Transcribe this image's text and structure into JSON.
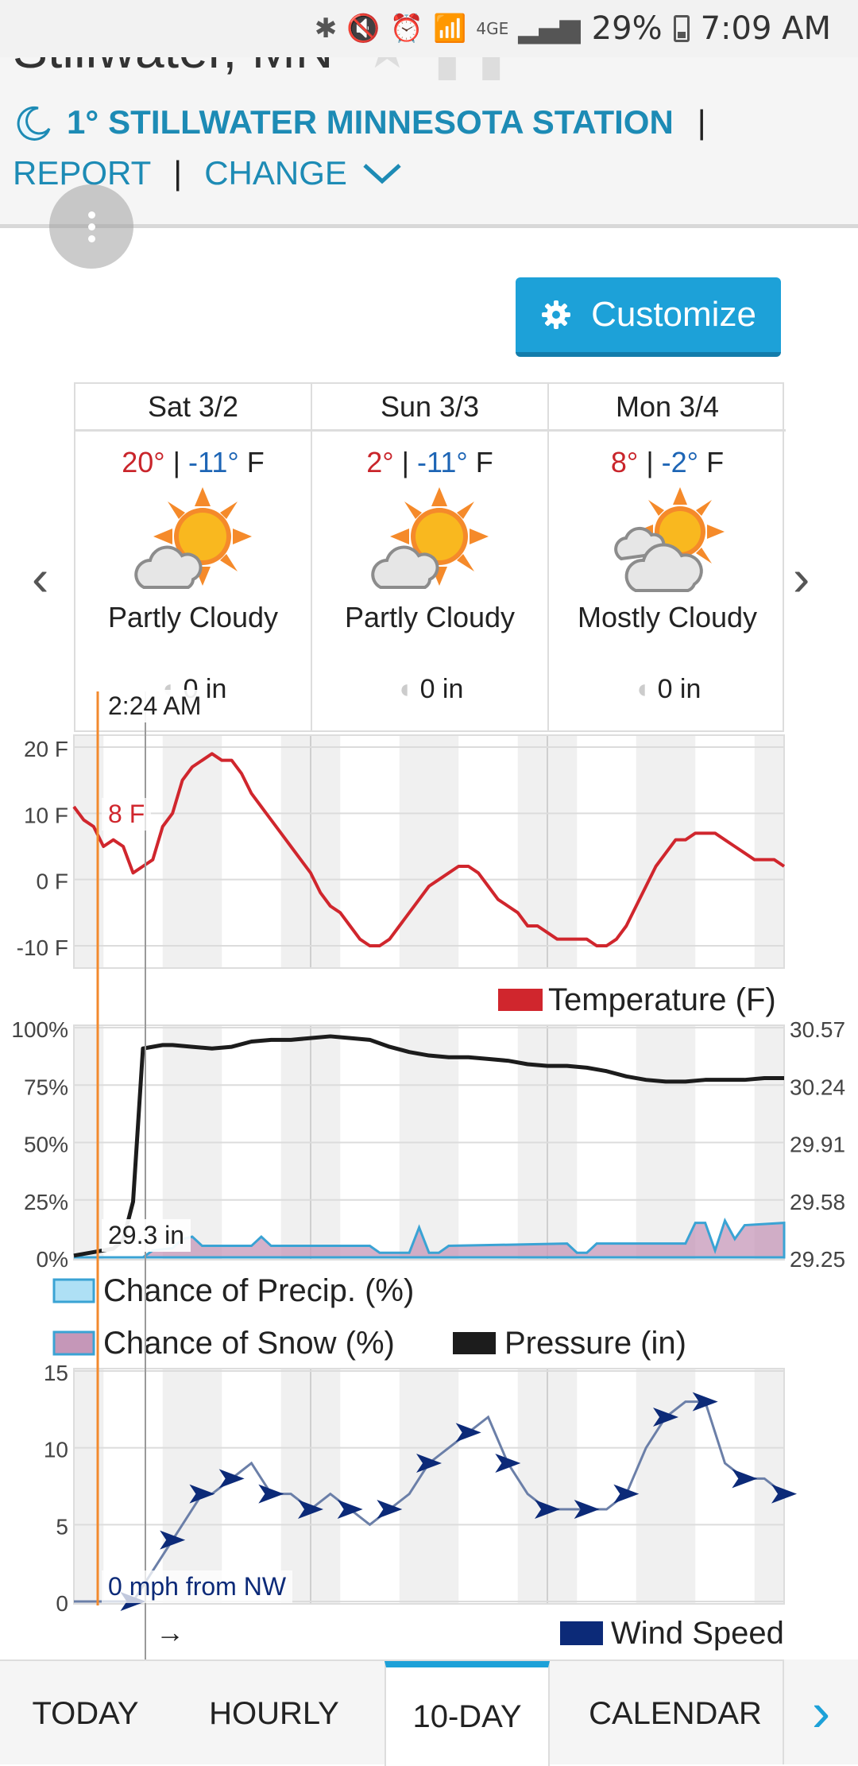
{
  "status_bar": {
    "battery": "29%",
    "time": "7:09 AM",
    "network": "4GE"
  },
  "header": {
    "city": "Stillwater, MN",
    "station_temp": "1°",
    "station_name": "STILLWATER MINNESOTA STATION",
    "separator": "|",
    "report_label": "REPORT",
    "change_label": "CHANGE"
  },
  "customize_label": "Customize",
  "forecast": [
    {
      "day": "Sat 3/2",
      "high": "20°",
      "low": "-11°",
      "unit": "F",
      "condition": "Partly Cloudy",
      "precip": "0 in",
      "icon": "partly-cloudy-icon"
    },
    {
      "day": "Sun 3/3",
      "high": "2°",
      "low": "-11°",
      "unit": "F",
      "condition": "Partly Cloudy",
      "precip": "0 in",
      "icon": "partly-cloudy-icon"
    },
    {
      "day": "Mon 3/4",
      "high": "8°",
      "low": "-2°",
      "unit": "F",
      "condition": "Mostly Cloudy",
      "precip": "0 in",
      "icon": "mostly-cloudy-icon"
    }
  ],
  "cursor": {
    "time": "2:24 AM",
    "temp": "8 F",
    "pressure": "29.3 in",
    "wind": "0 mph from NW",
    "wind_arrow": "→"
  },
  "chart_data": [
    {
      "type": "line",
      "title": "",
      "ylabel": "",
      "yticks": [
        "20 F",
        "10 F",
        "0 F",
        "-10 F"
      ],
      "ylim": [
        -10,
        20
      ],
      "xlim": [
        0,
        72
      ],
      "series": [
        {
          "name": "Temperature (F)",
          "color": "#d0262d",
          "x": [
            0,
            1,
            2,
            3,
            4,
            5,
            6,
            7,
            8,
            9,
            10,
            11,
            12,
            13,
            14,
            15,
            16,
            17,
            18,
            19,
            20,
            21,
            22,
            23,
            24,
            25,
            26,
            27,
            28,
            29,
            30,
            31,
            32,
            33,
            34,
            35,
            36,
            37,
            38,
            39,
            40,
            41,
            42,
            43,
            44,
            45,
            46,
            47,
            48,
            49,
            50,
            51,
            52,
            53,
            54,
            55,
            56,
            57,
            58,
            59,
            60,
            61,
            62,
            63,
            64,
            65,
            66,
            67,
            68,
            69,
            70,
            71,
            72
          ],
          "values": [
            11,
            9,
            8,
            5,
            6,
            5,
            1,
            2,
            3,
            8,
            10,
            15,
            17,
            18,
            19,
            18,
            18,
            16,
            13,
            11,
            9,
            7,
            5,
            3,
            1,
            -2,
            -4,
            -5,
            -7,
            -9,
            -10,
            -10,
            -9,
            -7,
            -5,
            -3,
            -1,
            0,
            1,
            2,
            2,
            1,
            -1,
            -3,
            -4,
            -5,
            -7,
            -7,
            -8,
            -9,
            -9,
            -9,
            -9,
            -10,
            -10,
            -9,
            -7,
            -4,
            -1,
            2,
            4,
            6,
            6,
            7,
            7,
            7,
            6,
            5,
            4,
            3,
            3,
            3,
            2
          ]
        }
      ],
      "legend": "bottom-right",
      "grid": true
    },
    {
      "type": "line",
      "yticks_left": [
        "100%",
        "75%",
        "50%",
        "25%",
        "0%"
      ],
      "yticks_right": [
        "30.57",
        "30.24",
        "29.91",
        "29.58",
        "29.25"
      ],
      "ylim_left": [
        0,
        100
      ],
      "ylim_right": [
        29.25,
        30.57
      ],
      "xlim": [
        0,
        72
      ],
      "series": [
        {
          "name": "Pressure (in)",
          "color": "#1c1c1c",
          "x": [
            0,
            2,
            4,
            5,
            6,
            7,
            9,
            10,
            12,
            14,
            16,
            18,
            20,
            22,
            24,
            26,
            28,
            30,
            32,
            34,
            36,
            38,
            40,
            42,
            44,
            46,
            48,
            50,
            52,
            54,
            56,
            58,
            60,
            62,
            64,
            66,
            68,
            70,
            72
          ],
          "values": [
            29.26,
            29.28,
            29.3,
            29.35,
            29.57,
            30.45,
            30.47,
            30.47,
            30.46,
            30.45,
            30.46,
            30.49,
            30.5,
            30.5,
            30.51,
            30.52,
            30.51,
            30.5,
            30.46,
            30.43,
            30.41,
            30.4,
            30.4,
            30.39,
            30.38,
            30.36,
            30.35,
            30.35,
            30.34,
            30.32,
            30.29,
            30.27,
            30.26,
            30.26,
            30.27,
            30.27,
            30.27,
            30.28,
            30.28
          ]
        },
        {
          "name": "Chance of Precip. (%)",
          "color": "#7ec8e8",
          "values": []
        },
        {
          "name": "Chance of Snow (%)",
          "color": "#c597b8",
          "x": [
            0,
            6,
            7,
            8,
            10,
            11,
            12,
            13,
            14,
            17,
            18,
            19,
            20,
            30,
            31,
            32,
            33,
            34,
            35,
            36,
            37,
            38,
            50,
            51,
            52,
            53,
            55,
            56,
            60,
            62,
            63,
            64,
            65,
            66,
            67,
            68,
            72
          ],
          "values": [
            0,
            0,
            0,
            3,
            4,
            8,
            9,
            5,
            5,
            5,
            5,
            9,
            5,
            5,
            2,
            2,
            2,
            2,
            13,
            2,
            2,
            5,
            6,
            2,
            2,
            6,
            6,
            6,
            6,
            6,
            15,
            15,
            3,
            16,
            8,
            14,
            15
          ]
        }
      ],
      "legend": "bottom-left",
      "grid": true
    },
    {
      "type": "line",
      "yticks": [
        "15",
        "10",
        "5",
        "0"
      ],
      "ylim": [
        0,
        15
      ],
      "xlim": [
        0,
        72
      ],
      "series": [
        {
          "name": "Wind Speed",
          "color": "#0c2a78",
          "x": [
            0,
            3,
            6,
            8,
            10,
            12,
            13,
            14,
            16,
            18,
            20,
            22,
            24,
            26,
            28,
            30,
            32,
            34,
            36,
            38,
            40,
            42,
            44,
            46,
            48,
            50,
            52,
            54,
            56,
            58,
            60,
            62,
            64,
            66,
            68,
            70,
            72
          ],
          "values": [
            0,
            0,
            0,
            2,
            4,
            6,
            7,
            7,
            8,
            9,
            7,
            7,
            6,
            7,
            6,
            5,
            6,
            7,
            9,
            10,
            11,
            12,
            9,
            7,
            6,
            6,
            6,
            6,
            7,
            10,
            12,
            13,
            13,
            9,
            8,
            8,
            7
          ]
        }
      ],
      "legend": "bottom-right",
      "grid": true
    }
  ],
  "legends": {
    "temperature": "Temperature (F)",
    "precip": "Chance of Precip. (%)",
    "snow": "Chance of Snow (%)",
    "pressure": "Pressure (in)",
    "wind": "Wind Speed"
  },
  "tabs": {
    "today": "TODAY",
    "hourly": "HOURLY",
    "ten_day": "10-DAY",
    "calendar": "CALENDAR",
    "active": "10-DAY"
  }
}
